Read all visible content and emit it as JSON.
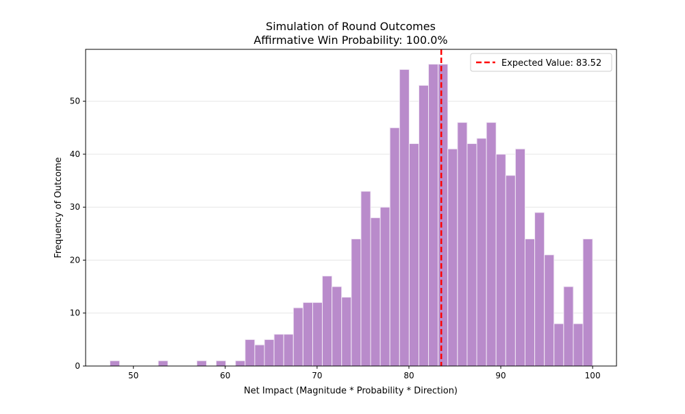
{
  "chart_data": {
    "type": "bar",
    "subtype": "histogram",
    "title": "Simulation of Round Outcomes",
    "subtitle": "Affirmative Win Probability: 100.0%",
    "xlabel": "Net Impact (Magnitude * Probability * Direction)",
    "ylabel": "Frequency of Outcome",
    "xlim": [
      44.8,
      102.6
    ],
    "ylim": [
      0,
      59.8
    ],
    "xticks": [
      50,
      60,
      70,
      80,
      90,
      100
    ],
    "yticks": [
      0,
      10,
      20,
      30,
      40,
      50
    ],
    "grid": "y",
    "bin_range": [
      47.45,
      100.0
    ],
    "counts": [
      1,
      0,
      0,
      0,
      0,
      1,
      0,
      0,
      0,
      1,
      0,
      1,
      0,
      1,
      5,
      4,
      5,
      6,
      6,
      11,
      12,
      12,
      17,
      15,
      13,
      24,
      33,
      28,
      30,
      45,
      56,
      42,
      53,
      57,
      57,
      41,
      46,
      42,
      43,
      46,
      40,
      36,
      41,
      24,
      29,
      21,
      8,
      15,
      8,
      24
    ],
    "bar_color": "#b98bcb",
    "expected_value": 83.52,
    "expected_line_color": "#ff0000",
    "legend": {
      "position": "top-right",
      "entries": [
        "Expected Value: 83.52"
      ]
    }
  }
}
